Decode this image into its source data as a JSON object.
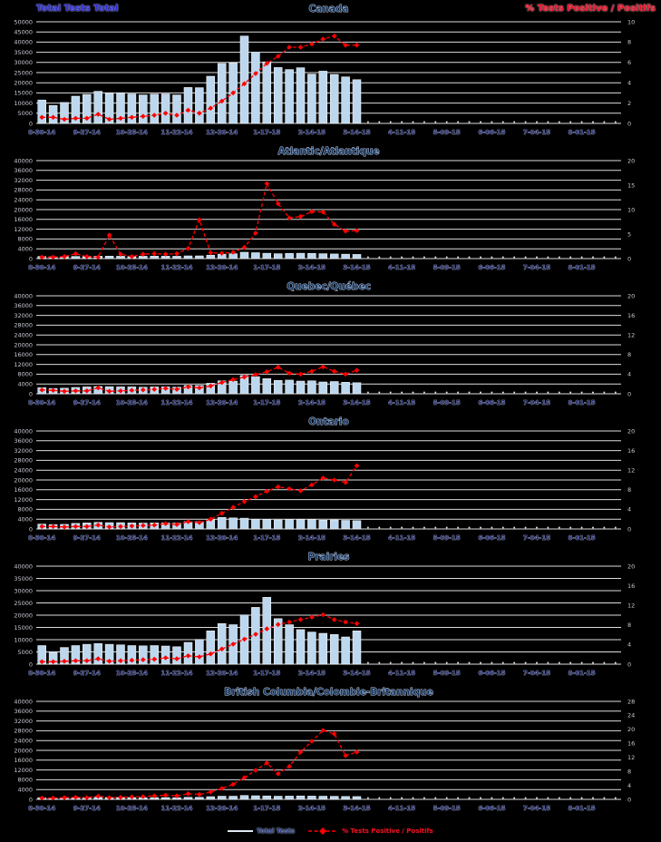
{
  "page": {
    "background": "#000000"
  },
  "header": {
    "left_label": "Total Tests Total",
    "right_label": "% Tests Positive / Positifs",
    "left_color": "#2f2fd0",
    "right_color": "#e8112d"
  },
  "colors": {
    "bar_fill": "#BDD7EE",
    "bar_stroke": "#FFFFFF",
    "line": "#FF0000",
    "gridline": "#DCDCDC",
    "tick_label": "#C9CCD4",
    "title_fill": "#17375E",
    "title_halo": "#C8D4EE",
    "xlabel_fill": "#2A2F6E",
    "xlabel_halo": "#AEB8D8"
  },
  "legend": {
    "items": [
      {
        "label": "Total Tests",
        "type": "line",
        "color": "#DFE9F4"
      },
      {
        "label": "% Tests Positive / Positifs",
        "type": "dashed-line-diamond",
        "color": "#FF0000"
      }
    ]
  },
  "x_axis": {
    "tick_labels": [
      "8-30-14",
      "9-27-14",
      "10-25-14",
      "11-22-14",
      "12-20-14",
      "1-17-15",
      "2-14-15",
      "3-14-15",
      "4-11-15",
      "5-09-15",
      "6-06-15",
      "7-04-15",
      "8-01-15"
    ],
    "tick_week_indices": [
      0,
      4,
      8,
      12,
      16,
      20,
      24,
      28,
      32,
      36,
      40,
      44,
      48
    ],
    "total_weeks": 52,
    "first_week_ending": "8-30-14",
    "weeks_with_data": 29
  },
  "chart_data": [
    {
      "type": "bar",
      "title": "Canada",
      "left_axis": {
        "max": 50000,
        "labels": [
          "50000",
          "45000",
          "40000",
          "35000",
          "30000",
          "25000",
          "20000",
          "15000",
          "10000",
          "5000",
          "0"
        ]
      },
      "right_axis": {
        "max": 10,
        "labels": [
          "10",
          "8",
          "6",
          "4",
          "2",
          "0"
        ]
      },
      "series": [
        {
          "name": "Total Tests",
          "type": "bar",
          "values": [
            11500,
            8800,
            10300,
            13400,
            14300,
            15800,
            14800,
            14800,
            14500,
            14000,
            14400,
            14500,
            14000,
            17700,
            17600,
            23200,
            29500,
            29800,
            43000,
            35000,
            30300,
            27500,
            26500,
            27400,
            24300,
            25700,
            24100,
            22900,
            21500
          ]
        },
        {
          "name": "% Tests Positive",
          "type": "line",
          "values": [
            0.6,
            0.6,
            0.4,
            0.5,
            0.5,
            0.9,
            0.4,
            0.5,
            0.6,
            0.7,
            0.8,
            1.0,
            0.8,
            1.3,
            1.0,
            1.5,
            2.2,
            3.0,
            3.9,
            4.9,
            5.9,
            6.6,
            7.5,
            7.5,
            7.8,
            8.3,
            8.6,
            7.7,
            7.7
          ]
        }
      ]
    },
    {
      "type": "bar",
      "title": "Atlantic/Atlantique",
      "left_axis": {
        "max": 40000,
        "labels": [
          "40000",
          "36000",
          "32000",
          "28000",
          "24000",
          "20000",
          "16000",
          "12000",
          "8000",
          "4000",
          "0"
        ]
      },
      "right_axis": {
        "max": 20,
        "labels": [
          "20",
          "15",
          "10",
          "5",
          "0"
        ]
      },
      "series": [
        {
          "name": "Total Tests",
          "type": "bar",
          "values": [
            900,
            800,
            850,
            900,
            950,
            1000,
            1000,
            950,
            900,
            950,
            1000,
            1000,
            950,
            1100,
            1100,
            1400,
            1800,
            2000,
            2600,
            2400,
            2200,
            2000,
            2100,
            2200,
            2100,
            2000,
            1900,
            1800,
            1700
          ]
        },
        {
          "name": "% Tests Positive",
          "type": "line",
          "values": [
            0.3,
            0.3,
            0.4,
            1.0,
            0.4,
            0.3,
            4.8,
            0.9,
            0.4,
            0.9,
            1.0,
            0.9,
            1.0,
            2.1,
            7.9,
            1.2,
            1.1,
            1.3,
            2.3,
            5.2,
            15.3,
            11.2,
            8.3,
            8.6,
            9.6,
            9.5,
            7.0,
            5.6,
            5.7
          ]
        }
      ]
    },
    {
      "type": "bar",
      "title": "Quebec/Québec",
      "left_axis": {
        "max": 40000,
        "labels": [
          "40000",
          "36000",
          "32000",
          "28000",
          "24000",
          "20000",
          "16000",
          "12000",
          "8000",
          "4000",
          "0"
        ]
      },
      "right_axis": {
        "max": 20,
        "labels": [
          "20",
          "16",
          "12",
          "8",
          "4",
          "0"
        ]
      },
      "series": [
        {
          "name": "Total Tests",
          "type": "bar",
          "values": [
            2500,
            2200,
            2300,
            2600,
            2800,
            3000,
            2900,
            2800,
            2800,
            2700,
            2800,
            2800,
            2700,
            3400,
            3400,
            4300,
            5300,
            5200,
            7500,
            7000,
            6200,
            5500,
            5600,
            5200,
            5300,
            4800,
            5000,
            4700,
            4500
          ]
        },
        {
          "name": "% Tests Positive",
          "type": "line",
          "values": [
            0.8,
            0.7,
            0.5,
            0.6,
            0.6,
            1.2,
            0.5,
            0.6,
            0.7,
            0.8,
            0.9,
            1.1,
            0.9,
            1.4,
            1.2,
            1.6,
            2.3,
            2.9,
            3.4,
            3.9,
            4.5,
            5.4,
            4.2,
            4.0,
            4.6,
            5.5,
            4.6,
            4.0,
            4.8
          ]
        }
      ]
    },
    {
      "type": "bar",
      "title": "Ontario",
      "left_axis": {
        "max": 40000,
        "labels": [
          "40000",
          "36000",
          "32000",
          "28000",
          "24000",
          "20000",
          "16000",
          "12000",
          "8000",
          "4000",
          "0"
        ]
      },
      "right_axis": {
        "max": 20,
        "labels": [
          "20",
          "16",
          "12",
          "8",
          "4",
          "0"
        ]
      },
      "series": [
        {
          "name": "Total Tests",
          "type": "bar",
          "values": [
            2000,
            1800,
            1900,
            2300,
            2500,
            2700,
            2600,
            2600,
            2500,
            2400,
            2500,
            2500,
            2400,
            3000,
            3000,
            3900,
            4700,
            4500,
            4400,
            4000,
            3900,
            3700,
            3800,
            3900,
            3800,
            3600,
            3700,
            3500,
            3400
          ]
        },
        {
          "name": "% Tests Positive",
          "type": "line",
          "values": [
            0.5,
            0.5,
            0.4,
            0.5,
            0.5,
            0.8,
            0.4,
            0.5,
            0.6,
            0.7,
            0.8,
            1.1,
            0.9,
            1.5,
            1.3,
            2.0,
            3.2,
            4.4,
            5.6,
            6.6,
            7.7,
            8.6,
            8.2,
            7.8,
            9.0,
            10.4,
            10.0,
            9.5,
            12.9
          ]
        }
      ]
    },
    {
      "type": "bar",
      "title": "Prairies",
      "left_axis": {
        "max": 40000,
        "labels": [
          "40000",
          "35000",
          "30000",
          "25000",
          "20000",
          "15000",
          "10000",
          "5000",
          "0"
        ]
      },
      "right_axis": {
        "max": 20,
        "labels": [
          "20",
          "16",
          "12",
          "8",
          "4",
          "0"
        ]
      },
      "series": [
        {
          "name": "Total Tests",
          "type": "bar",
          "values": [
            7600,
            5000,
            6800,
            7600,
            8100,
            8400,
            8100,
            7900,
            7600,
            7500,
            7600,
            7400,
            7100,
            8900,
            10100,
            13600,
            16600,
            16100,
            20100,
            23200,
            27300,
            18600,
            16100,
            14100,
            13100,
            12600,
            12100,
            11100,
            13600
          ]
        },
        {
          "name": "% Tests Positive",
          "type": "line",
          "values": [
            0.5,
            0.5,
            0.6,
            0.7,
            0.7,
            1.1,
            0.6,
            0.7,
            0.8,
            0.9,
            1.0,
            1.3,
            1.1,
            1.7,
            1.5,
            2.1,
            3.1,
            4.1,
            5.1,
            6.1,
            7.2,
            8.1,
            8.6,
            9.1,
            9.6,
            10.1,
            9.1,
            8.6,
            8.3
          ]
        }
      ]
    },
    {
      "type": "bar",
      "title": "British Columbia/Colombie-Britannique",
      "left_axis": {
        "max": 40000,
        "labels": [
          "40000",
          "36000",
          "32000",
          "28000",
          "24000",
          "20000",
          "16000",
          "12000",
          "8000",
          "4000",
          "0"
        ]
      },
      "right_axis": {
        "max": 28,
        "labels": [
          "28",
          "24",
          "20",
          "16",
          "12",
          "8",
          "4",
          "0"
        ]
      },
      "series": [
        {
          "name": "Total Tests",
          "type": "bar",
          "values": [
            700,
            600,
            650,
            700,
            750,
            800,
            780,
            760,
            740,
            720,
            740,
            730,
            700,
            850,
            850,
            1100,
            1300,
            1300,
            1600,
            1500,
            1400,
            1300,
            1350,
            1400,
            1350,
            1300,
            1250,
            1200,
            1150
          ]
        },
        {
          "name": "% Tests Positive",
          "type": "line",
          "values": [
            0.4,
            0.4,
            0.5,
            0.6,
            0.5,
            0.9,
            0.5,
            0.6,
            0.7,
            0.8,
            1.0,
            1.2,
            1.0,
            1.6,
            1.4,
            2.1,
            3.1,
            4.3,
            6.2,
            8.3,
            10.4,
            7.3,
            9.4,
            13.5,
            16.6,
            19.7,
            18.7,
            12.5,
            13.5
          ]
        }
      ]
    }
  ]
}
